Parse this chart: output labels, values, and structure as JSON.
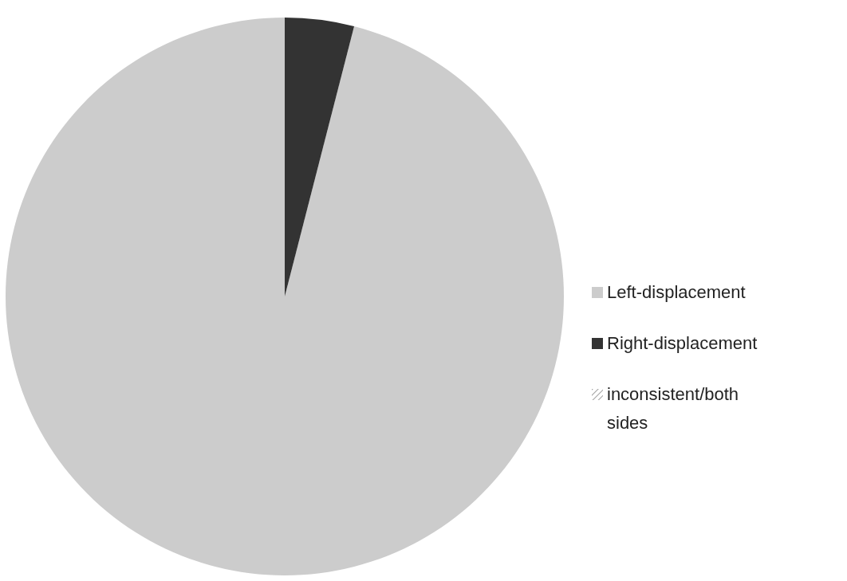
{
  "chart_data": {
    "type": "pie",
    "categories": [
      "Left-displacement",
      "Right-displacement",
      "inconsistent/both sides"
    ],
    "values": [
      96,
      4,
      0
    ],
    "colors": [
      "#cccccc",
      "#333333",
      "#808080"
    ],
    "legend": "right"
  }
}
